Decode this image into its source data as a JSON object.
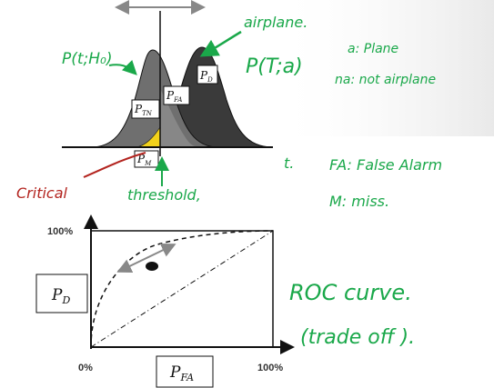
{
  "distribution": {
    "p_fa_label": "P",
    "p_fa_sub": "FA",
    "p_tn_label": "P",
    "p_tn_sub": "TN",
    "p_m_label": "P",
    "p_m_sub": "M",
    "p_d_label": "P",
    "p_d_sub": "D"
  },
  "annotations": {
    "p_t_h0": "P(t;H₀)",
    "airplane": "airplane.",
    "p_t_a": "P(T;a)",
    "legend_a": "a: Plane",
    "legend_na": "na: not airplane",
    "t_label": "t.",
    "fa_def": "FA: False Alarm",
    "m_def": "M: miss.",
    "critical": "Critical",
    "threshold": "threshold,",
    "roc": "ROC curve.",
    "trade_off": "(trade off )."
  },
  "roc": {
    "y_tick_top": "100%",
    "x_tick_left": "0%",
    "x_tick_right": "100%",
    "y_label": "P",
    "y_label_sub": "D",
    "x_label": "P",
    "x_label_sub": "FA"
  },
  "colors": {
    "ink_green": "#1aa84a",
    "ink_red": "#b3241f",
    "dist_left": "#6f6f6f",
    "dist_right": "#3a3a3a",
    "overlap_yellow": "#f2d21b"
  }
}
